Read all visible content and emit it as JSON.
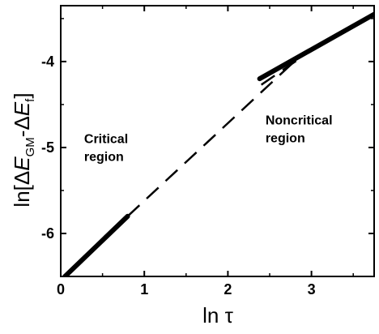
{
  "chart_data": {
    "type": "line",
    "xlabel": "ln τ",
    "ylabel": {
      "prefix": "ln[Δ",
      "e1": "E",
      "sub1": "GM",
      "mid": "-Δ",
      "e2": "E",
      "sub2": "f",
      "suffix": "]"
    },
    "xlim": [
      0,
      3.75
    ],
    "ylim": [
      -6.5,
      -3.35
    ],
    "x_ticks": [
      0,
      1,
      2,
      3
    ],
    "x_tick_labels": [
      "0",
      "1",
      "2",
      "3"
    ],
    "y_ticks": [
      -6,
      -5,
      -4
    ],
    "y_tick_labels": [
      "-6",
      "-5",
      "-4"
    ],
    "grid": false,
    "legend": "none",
    "annotations": [
      {
        "text_lines": [
          "Critical",
          "region"
        ],
        "x": 0.28,
        "y": -4.95
      },
      {
        "text_lines": [
          "Noncritical",
          "region"
        ],
        "x": 2.45,
        "y": -4.73
      }
    ],
    "series": [
      {
        "style": "thick-solid",
        "x": [
          0.05,
          0.8
        ],
        "y": [
          -6.5,
          -5.8
        ]
      },
      {
        "style": "dashed",
        "x": [
          0.8,
          2.85
        ],
        "y": [
          -5.8,
          -3.95
        ]
      },
      {
        "style": "thick-solid",
        "x": [
          2.38,
          3.75
        ],
        "y": [
          -4.2,
          -3.45
        ]
      },
      {
        "style": "dashed",
        "x": [
          2.4,
          2.85
        ],
        "y": [
          -4.27,
          -3.97
        ]
      }
    ]
  }
}
